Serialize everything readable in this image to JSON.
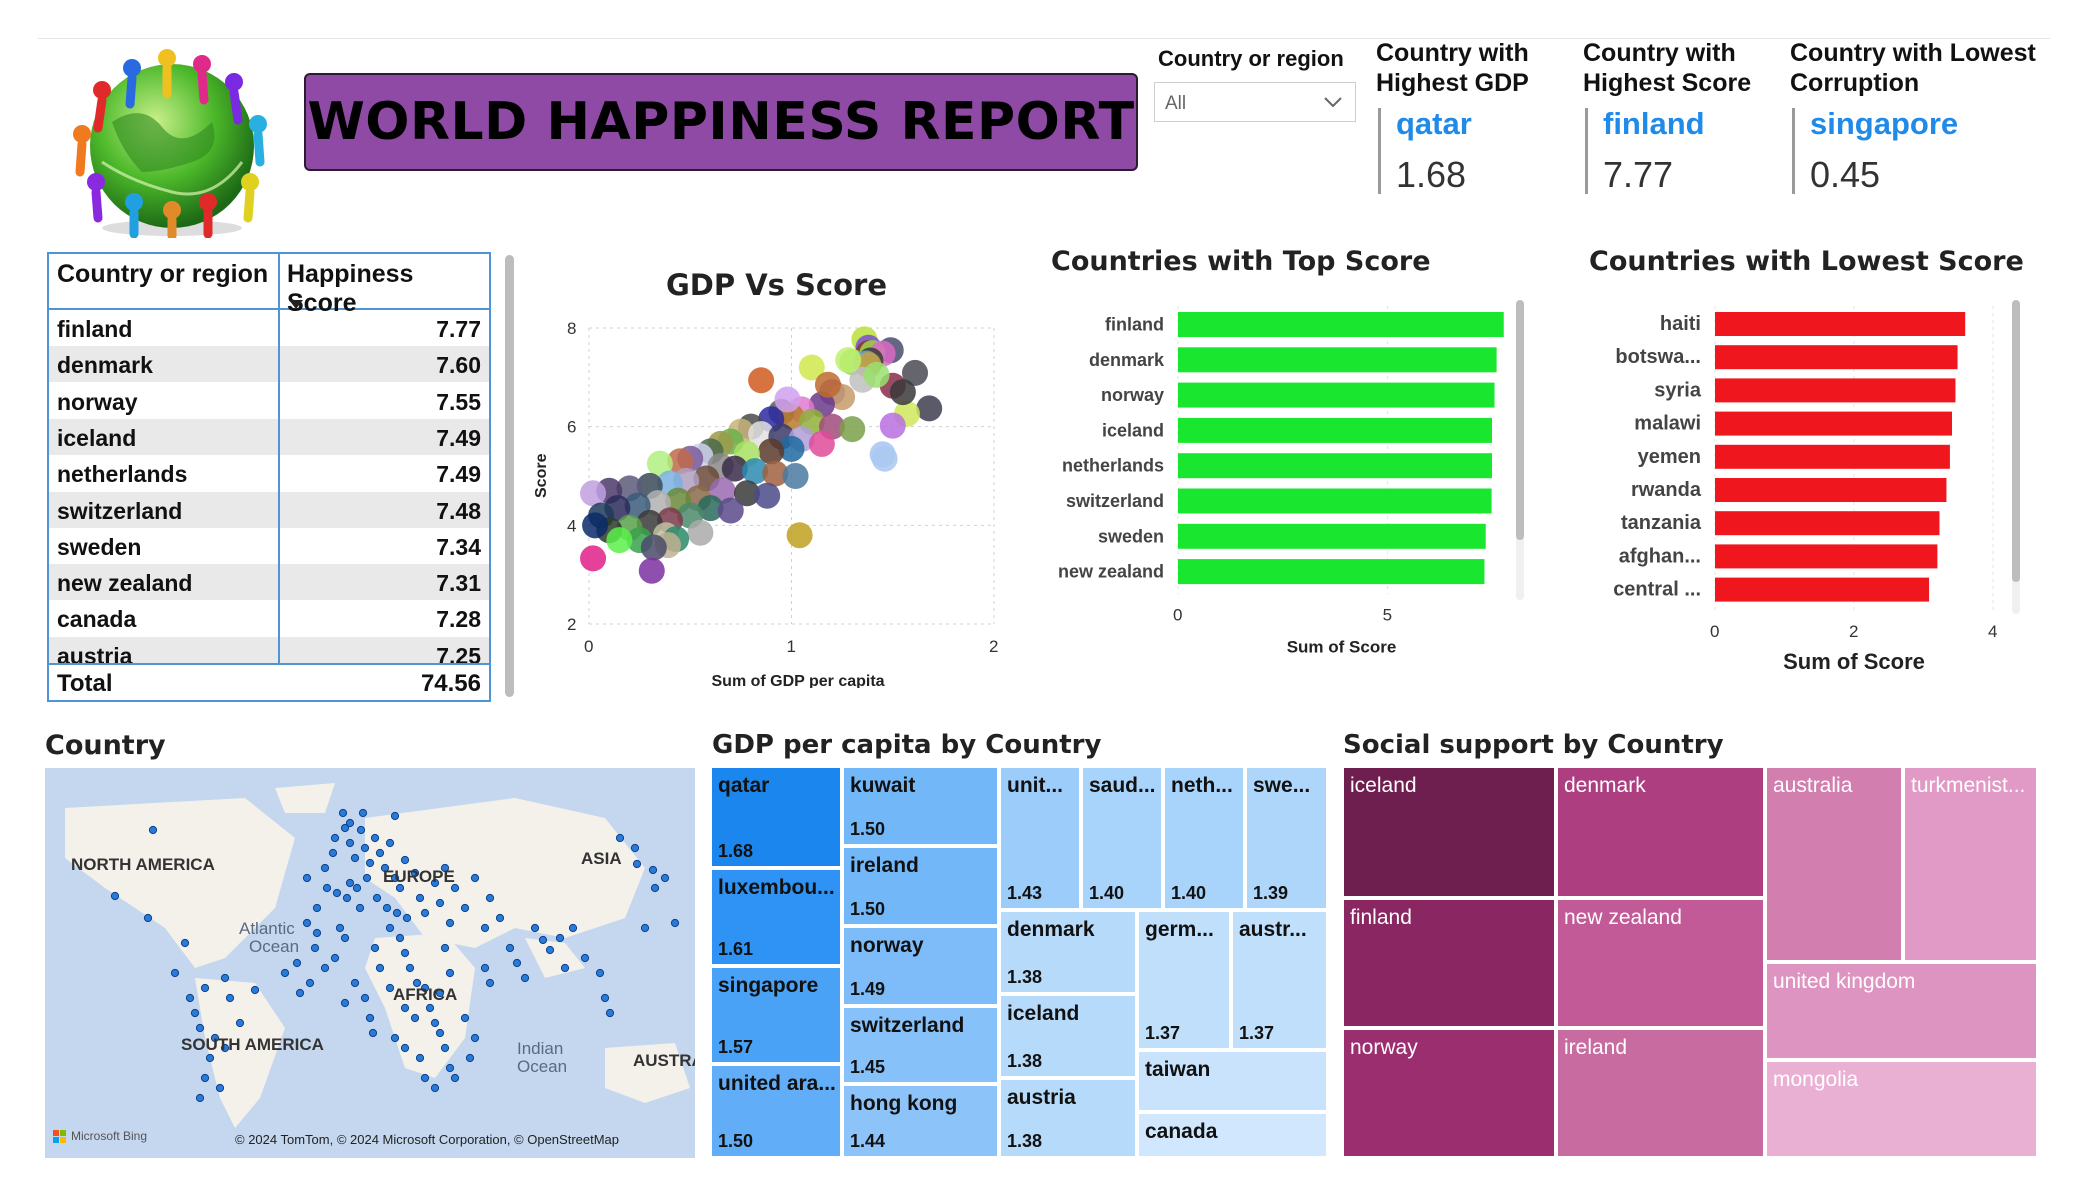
{
  "header": {
    "title": "WORLD HAPPINESS REPORT",
    "logo_icon": "people-around-globe-logo"
  },
  "slicer": {
    "label": "Country or region",
    "value": "All"
  },
  "kpis": [
    {
      "title_line1": "Country with",
      "title_line2": "Highest GDP",
      "country": "qatar",
      "value": "1.68"
    },
    {
      "title_line1": "Country with",
      "title_line2": "Highest Score",
      "country": "finland",
      "value": "7.77"
    },
    {
      "title_line1": "Country with Lowest",
      "title_line2": "Corruption",
      "country": "singapore",
      "value": "0.45"
    }
  ],
  "score_table": {
    "col1": "Country or region",
    "col2": "Happiness Score",
    "rows": [
      {
        "country": "finland",
        "score": "7.77"
      },
      {
        "country": "denmark",
        "score": "7.60"
      },
      {
        "country": "norway",
        "score": "7.55"
      },
      {
        "country": "iceland",
        "score": "7.49"
      },
      {
        "country": "netherlands",
        "score": "7.49"
      },
      {
        "country": "switzerland",
        "score": "7.48"
      },
      {
        "country": "sweden",
        "score": "7.34"
      },
      {
        "country": "new zealand",
        "score": "7.31"
      },
      {
        "country": "canada",
        "score": "7.28"
      },
      {
        "country": "austria",
        "score": "7.25"
      }
    ],
    "total_label": "Total",
    "total_value": "74.56"
  },
  "map_section": {
    "title": "Country",
    "labels": [
      "NORTH AMERICA",
      "EUROPE",
      "ASIA",
      "Atlantic",
      "Ocean",
      "AFRICA",
      "SOUTH AMERICA",
      "Indian",
      "Ocean",
      "AUSTRA"
    ],
    "attribution": "© 2024 TomTom, © 2024 Microsoft Corporation, © OpenStreetMap",
    "bing_label": "Microsoft Bing"
  },
  "treemap_gdp": {
    "title": "GDP per capita by Country",
    "cells": [
      {
        "name": "qatar",
        "value": "1.68",
        "color": "#1a86ee"
      },
      {
        "name": "luxembou...",
        "value": "1.61",
        "color": "#2e93f4"
      },
      {
        "name": "singapore",
        "value": "1.57",
        "color": "#4aa2f6"
      },
      {
        "name": "united ara...",
        "value": "1.50",
        "color": "#61adf7"
      },
      {
        "name": "kuwait",
        "value": "1.50",
        "color": "#72b7f8"
      },
      {
        "name": "ireland",
        "value": "1.50",
        "color": "#72b7f8"
      },
      {
        "name": "norway",
        "value": "1.49",
        "color": "#7dbcf8"
      },
      {
        "name": "switzerland",
        "value": "1.45",
        "color": "#86c1f9"
      },
      {
        "name": "hong kong",
        "value": "1.44",
        "color": "#8cc4f9"
      },
      {
        "name": "unit...",
        "value": "1.43",
        "color": "#9bccfa"
      },
      {
        "name": "saud...",
        "value": "1.40",
        "color": "#a8d3fb"
      },
      {
        "name": "neth...",
        "value": "1.40",
        "color": "#a8d3fb"
      },
      {
        "name": "swe...",
        "value": "1.39",
        "color": "#aed6fb"
      },
      {
        "name": "denmark",
        "value": "1.38",
        "color": "#b6daf9"
      },
      {
        "name": "iceland",
        "value": "1.38",
        "color": "#b6daf9"
      },
      {
        "name": "austria",
        "value": "1.38",
        "color": "#b6daf9"
      },
      {
        "name": "germ...",
        "value": "1.37",
        "color": "#bfdffb"
      },
      {
        "name": "austr...",
        "value": "1.37",
        "color": "#bfdffb"
      },
      {
        "name": "taiwan",
        "value": "",
        "color": "#c9e3fc"
      },
      {
        "name": "canada",
        "value": "",
        "color": "#d0e7fd"
      }
    ]
  },
  "treemap_social": {
    "title": "Social support by Country",
    "cells": [
      {
        "name": "iceland",
        "color": "#6e1f4f"
      },
      {
        "name": "finland",
        "color": "#8a2661"
      },
      {
        "name": "norway",
        "color": "#9b2e6e"
      },
      {
        "name": "denmark",
        "color": "#ad3f80"
      },
      {
        "name": "new zealand",
        "color": "#c25a97"
      },
      {
        "name": "ireland",
        "color": "#c86ba0"
      },
      {
        "name": "australia",
        "color": "#d27fb0"
      },
      {
        "name": "turkmenist...",
        "color": "#e19ac6"
      },
      {
        "name": "united kingdom",
        "color": "#de94c1"
      },
      {
        "name": "mongolia",
        "color": "#eab0d4"
      }
    ]
  },
  "chart_data": [
    {
      "type": "scatter",
      "title": "GDP Vs Score",
      "xlabel": "Sum of GDP per capita",
      "ylabel": "Score",
      "xlim": [
        0,
        2
      ],
      "ylim": [
        2,
        8
      ],
      "xticks": [
        "0",
        "1",
        "2"
      ],
      "yticks": [
        "2",
        "4",
        "6",
        "8"
      ],
      "grid": true,
      "points": [
        {
          "x": 1.36,
          "y": 7.77,
          "color": "#b8e03a"
        },
        {
          "x": 1.38,
          "y": 7.6,
          "color": "#7a4fd1"
        },
        {
          "x": 1.49,
          "y": 7.55,
          "color": "#4a4a6e"
        },
        {
          "x": 1.38,
          "y": 7.49,
          "color": "#8a3a2a"
        },
        {
          "x": 1.4,
          "y": 7.49,
          "color": "#9ad84a"
        },
        {
          "x": 1.45,
          "y": 7.48,
          "color": "#d96ac4"
        },
        {
          "x": 1.39,
          "y": 7.34,
          "color": "#3a3a3a"
        },
        {
          "x": 1.3,
          "y": 7.31,
          "color": "#7ed957"
        },
        {
          "x": 1.37,
          "y": 7.28,
          "color": "#5fa8e0"
        },
        {
          "x": 1.38,
          "y": 7.25,
          "color": "#c9a13a"
        },
        {
          "x": 1.68,
          "y": 6.37,
          "color": "#3d3d4e"
        },
        {
          "x": 1.61,
          "y": 7.09,
          "color": "#4a4a55"
        },
        {
          "x": 1.57,
          "y": 6.26,
          "color": "#cfe85a"
        },
        {
          "x": 1.5,
          "y": 6.83,
          "color": "#8b2c4a"
        },
        {
          "x": 1.5,
          "y": 6.02,
          "color": "#b96ee0"
        },
        {
          "x": 1.45,
          "y": 5.44,
          "color": "#a9c3f2"
        },
        {
          "x": 1.1,
          "y": 7.2,
          "color": "#d0e84b"
        },
        {
          "x": 1.35,
          "y": 6.95,
          "color": "#c0c0c0"
        },
        {
          "x": 0.85,
          "y": 6.94,
          "color": "#d05a1e"
        },
        {
          "x": 1.2,
          "y": 6.7,
          "color": "#7a5fa6"
        },
        {
          "x": 1.25,
          "y": 6.6,
          "color": "#c79a6a"
        },
        {
          "x": 1.15,
          "y": 6.45,
          "color": "#6a3a8a"
        },
        {
          "x": 1.05,
          "y": 6.35,
          "color": "#e07ad0"
        },
        {
          "x": 0.95,
          "y": 6.3,
          "color": "#5a5a5a"
        },
        {
          "x": 1.0,
          "y": 6.2,
          "color": "#b87b2a"
        },
        {
          "x": 0.9,
          "y": 6.15,
          "color": "#2a2aa0"
        },
        {
          "x": 1.1,
          "y": 6.1,
          "color": "#8fb03a"
        },
        {
          "x": 1.2,
          "y": 6.0,
          "color": "#a04a7a"
        },
        {
          "x": 1.3,
          "y": 5.95,
          "color": "#7aa04a"
        },
        {
          "x": 0.8,
          "y": 6.0,
          "color": "#4a4a4a"
        },
        {
          "x": 0.75,
          "y": 5.9,
          "color": "#c8b47a"
        },
        {
          "x": 0.85,
          "y": 5.85,
          "color": "#e0e0e0"
        },
        {
          "x": 0.95,
          "y": 5.8,
          "color": "#3a3a6a"
        },
        {
          "x": 1.05,
          "y": 5.75,
          "color": "#b09fd8"
        },
        {
          "x": 0.7,
          "y": 5.7,
          "color": "#6ab04a"
        },
        {
          "x": 0.65,
          "y": 5.65,
          "color": "#9a9a4a"
        },
        {
          "x": 1.15,
          "y": 5.65,
          "color": "#e04a9a"
        },
        {
          "x": 1.0,
          "y": 5.55,
          "color": "#1f6aa0"
        },
        {
          "x": 0.9,
          "y": 5.5,
          "color": "#5a3a2a"
        },
        {
          "x": 0.78,
          "y": 5.45,
          "color": "#a8e060"
        },
        {
          "x": 0.6,
          "y": 5.5,
          "color": "#4a6a4a"
        },
        {
          "x": 0.55,
          "y": 5.4,
          "color": "#d0d0f0"
        },
        {
          "x": 0.5,
          "y": 5.35,
          "color": "#7a5a9a"
        },
        {
          "x": 0.45,
          "y": 5.3,
          "color": "#c06a4a"
        },
        {
          "x": 0.35,
          "y": 5.25,
          "color": "#b0f080"
        },
        {
          "x": 0.65,
          "y": 5.2,
          "color": "#8a8a8a"
        },
        {
          "x": 0.72,
          "y": 5.15,
          "color": "#3a2a4a"
        },
        {
          "x": 0.82,
          "y": 5.1,
          "color": "#2a8ab0"
        },
        {
          "x": 0.92,
          "y": 5.05,
          "color": "#a06040"
        },
        {
          "x": 1.02,
          "y": 5.0,
          "color": "#4a7aa0"
        },
        {
          "x": 0.58,
          "y": 4.95,
          "color": "#6a4a3a"
        },
        {
          "x": 0.48,
          "y": 4.9,
          "color": "#b0a0c0"
        },
        {
          "x": 0.4,
          "y": 4.85,
          "color": "#7ab0e0"
        },
        {
          "x": 0.3,
          "y": 4.8,
          "color": "#3a4a5a"
        },
        {
          "x": 0.2,
          "y": 4.75,
          "color": "#5a5a7a"
        },
        {
          "x": 0.1,
          "y": 4.7,
          "color": "#4a3a6a"
        },
        {
          "x": 0.02,
          "y": 4.65,
          "color": "#c0a0e0"
        },
        {
          "x": 0.66,
          "y": 4.7,
          "color": "#9a6ab0"
        },
        {
          "x": 0.78,
          "y": 4.65,
          "color": "#3a3a3a"
        },
        {
          "x": 0.88,
          "y": 4.6,
          "color": "#4a4a8a"
        },
        {
          "x": 0.54,
          "y": 4.55,
          "color": "#8a6a4a"
        },
        {
          "x": 0.44,
          "y": 4.5,
          "color": "#6a8a3a"
        },
        {
          "x": 0.34,
          "y": 4.45,
          "color": "#b0b0b0"
        },
        {
          "x": 0.24,
          "y": 4.4,
          "color": "#3a5a7a"
        },
        {
          "x": 0.14,
          "y": 4.35,
          "color": "#2a2a5a"
        },
        {
          "x": 0.06,
          "y": 4.2,
          "color": "#1f3a5a"
        },
        {
          "x": 0.6,
          "y": 4.35,
          "color": "#2a6a5a"
        },
        {
          "x": 0.7,
          "y": 4.3,
          "color": "#5a4a8a"
        },
        {
          "x": 0.5,
          "y": 4.2,
          "color": "#4a8a6a"
        },
        {
          "x": 0.4,
          "y": 4.1,
          "color": "#7a3a4a"
        },
        {
          "x": 0.3,
          "y": 4.05,
          "color": "#3a3a3a"
        },
        {
          "x": 0.2,
          "y": 3.95,
          "color": "#5aa04a"
        },
        {
          "x": 0.1,
          "y": 3.9,
          "color": "#2a3a2a"
        },
        {
          "x": 0.03,
          "y": 4.0,
          "color": "#0a2a6a"
        },
        {
          "x": 0.55,
          "y": 3.85,
          "color": "#aaaaaa"
        },
        {
          "x": 0.38,
          "y": 3.8,
          "color": "#c0c0a0"
        },
        {
          "x": 0.25,
          "y": 3.7,
          "color": "#3aa04a"
        },
        {
          "x": 0.15,
          "y": 3.7,
          "color": "#5af04a"
        },
        {
          "x": 0.43,
          "y": 3.72,
          "color": "#2a8a6a"
        },
        {
          "x": 0.39,
          "y": 3.6,
          "color": "#c0b090"
        },
        {
          "x": 0.32,
          "y": 3.55,
          "color": "#4a4a6a"
        },
        {
          "x": 0.02,
          "y": 3.33,
          "color": "#e0208a"
        },
        {
          "x": 0.31,
          "y": 3.08,
          "color": "#7a30a0"
        },
        {
          "x": 1.04,
          "y": 3.8,
          "color": "#c0a020"
        },
        {
          "x": 1.46,
          "y": 5.35,
          "color": "#aac8f0"
        },
        {
          "x": 1.55,
          "y": 6.7,
          "color": "#3a3a3a"
        },
        {
          "x": 1.42,
          "y": 7.05,
          "color": "#9ae070"
        },
        {
          "x": 1.28,
          "y": 7.35,
          "color": "#c0f070"
        },
        {
          "x": 1.18,
          "y": 6.85,
          "color": "#c06a30"
        },
        {
          "x": 0.98,
          "y": 6.55,
          "color": "#d0a0f0"
        }
      ]
    },
    {
      "type": "bar",
      "orientation": "horizontal",
      "title": "Countries with Top Score",
      "xlabel": "Sum of Score",
      "ylabel": "",
      "xlim": [
        0,
        7.8
      ],
      "xticks": [
        "0",
        "5"
      ],
      "color": "#19e62f",
      "categories": [
        "finland",
        "denmark",
        "norway",
        "iceland",
        "netherlands",
        "switzerland",
        "sweden",
        "new zealand"
      ],
      "values": [
        7.77,
        7.6,
        7.55,
        7.49,
        7.49,
        7.48,
        7.34,
        7.31
      ]
    },
    {
      "type": "bar",
      "orientation": "horizontal",
      "title": "Countries with Lowest Score",
      "xlabel": "Sum of Score",
      "ylabel": "",
      "xlim": [
        0,
        4
      ],
      "xticks": [
        "0",
        "2",
        "4"
      ],
      "color": "#f0161e",
      "categories": [
        "haiti",
        "botswa...",
        "syria",
        "malawi",
        "yemen",
        "rwanda",
        "tanzania",
        "afghan...",
        "central ..."
      ],
      "values": [
        3.6,
        3.49,
        3.46,
        3.41,
        3.38,
        3.33,
        3.23,
        3.2,
        3.08
      ]
    }
  ]
}
